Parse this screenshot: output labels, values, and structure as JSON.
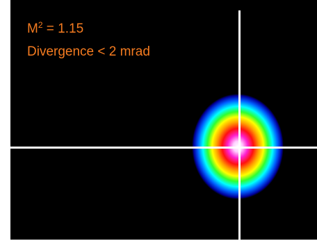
{
  "annotations": {
    "m2_symbol": "M",
    "m2_superscript": "2",
    "m2_value": " = 1.15",
    "divergence": "Divergence < 2 mrad"
  },
  "colors": {
    "background": "#000000",
    "text": "#f47b20",
    "crosshair": "#ffffff"
  }
}
